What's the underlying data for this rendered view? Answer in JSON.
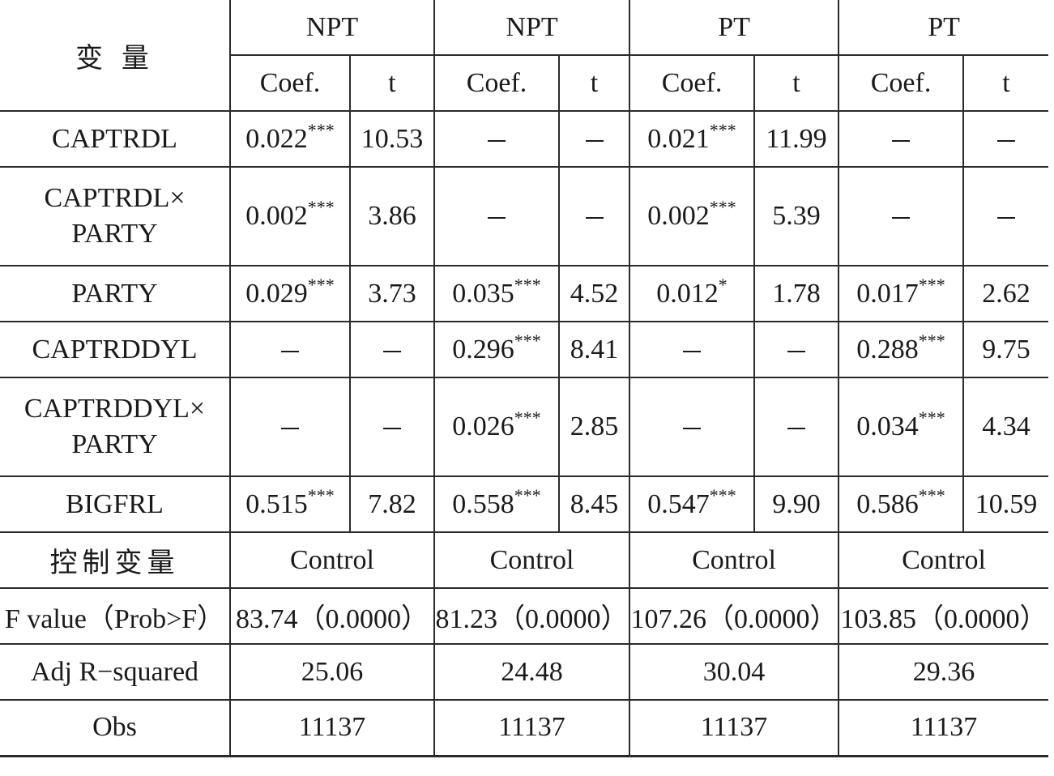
{
  "header": {
    "variable_label": "变 量",
    "groups": [
      "NPT",
      "NPT",
      "PT",
      "PT"
    ],
    "coef_label": "Coef.",
    "t_label": "t"
  },
  "rows": [
    {
      "name": "CAPTRDL",
      "cells": [
        {
          "v": "0.022",
          "s": "***"
        },
        {
          "v": "10.53"
        },
        {
          "v": "–"
        },
        {
          "v": "–"
        },
        {
          "v": "0.021",
          "s": "***"
        },
        {
          "v": "11.99"
        },
        {
          "v": "–"
        },
        {
          "v": "–"
        }
      ]
    },
    {
      "name_lines": [
        "CAPTRDL×",
        "PARTY"
      ],
      "cells": [
        {
          "v": "0.002",
          "s": "***"
        },
        {
          "v": "3.86"
        },
        {
          "v": "–"
        },
        {
          "v": "–"
        },
        {
          "v": "0.002",
          "s": "***"
        },
        {
          "v": "5.39"
        },
        {
          "v": "–"
        },
        {
          "v": "–"
        }
      ]
    },
    {
      "name": "PARTY",
      "cells": [
        {
          "v": "0.029",
          "s": "***"
        },
        {
          "v": "3.73"
        },
        {
          "v": "0.035",
          "s": "***"
        },
        {
          "v": "4.52"
        },
        {
          "v": "0.012",
          "s": "*"
        },
        {
          "v": "1.78"
        },
        {
          "v": "0.017",
          "s": "***"
        },
        {
          "v": "2.62"
        }
      ]
    },
    {
      "name": "CAPTRDDYL",
      "cells": [
        {
          "v": "–"
        },
        {
          "v": "–"
        },
        {
          "v": "0.296",
          "s": "***"
        },
        {
          "v": "8.41"
        },
        {
          "v": "–"
        },
        {
          "v": "–"
        },
        {
          "v": "0.288",
          "s": "***"
        },
        {
          "v": "9.75"
        }
      ]
    },
    {
      "name_lines": [
        "CAPTRDDYL×",
        "PARTY"
      ],
      "cells": [
        {
          "v": "–"
        },
        {
          "v": "–"
        },
        {
          "v": "0.026",
          "s": "***"
        },
        {
          "v": "2.85"
        },
        {
          "v": "–"
        },
        {
          "v": "–"
        },
        {
          "v": "0.034",
          "s": "***"
        },
        {
          "v": "4.34"
        }
      ]
    },
    {
      "name": "BIGFRL",
      "cells": [
        {
          "v": "0.515",
          "s": "***"
        },
        {
          "v": "7.82"
        },
        {
          "v": "0.558",
          "s": "***"
        },
        {
          "v": "8.45"
        },
        {
          "v": "0.547",
          "s": "***"
        },
        {
          "v": "9.90"
        },
        {
          "v": "0.586",
          "s": "***"
        },
        {
          "v": "10.59"
        }
      ]
    }
  ],
  "summary": [
    {
      "name": "控制变量",
      "values": [
        "Control",
        "Control",
        "Control",
        "Control"
      ]
    },
    {
      "name": "F value（Prob>F）",
      "values": [
        "83.74（0.0000）",
        "81.23（0.0000）",
        "107.26（0.0000）",
        "103.85（0.0000）"
      ]
    },
    {
      "name": "Adj R−squared",
      "values": [
        "25.06",
        "24.48",
        "30.04",
        "29.36"
      ]
    },
    {
      "name": "Obs",
      "values": [
        "11137",
        "11137",
        "11137",
        "11137"
      ]
    }
  ]
}
